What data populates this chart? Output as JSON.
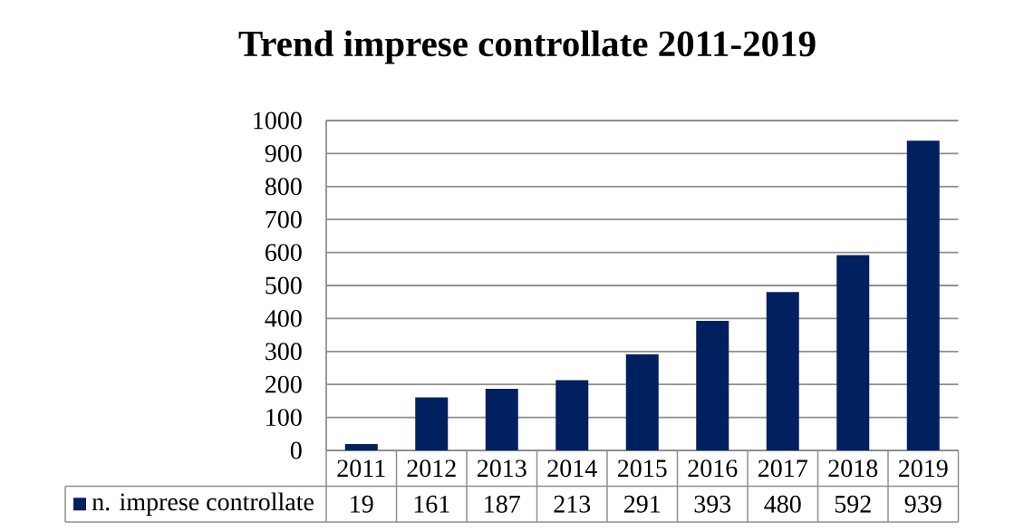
{
  "chart_data": {
    "type": "bar",
    "title": "Trend imprese controllate 2011-2019",
    "categories": [
      "2011",
      "2012",
      "2013",
      "2014",
      "2015",
      "2016",
      "2017",
      "2018",
      "2019"
    ],
    "series": [
      {
        "name": "n. imprese controllate",
        "color": "#002060",
        "values": [
          19,
          161,
          187,
          213,
          291,
          393,
          480,
          592,
          939
        ]
      }
    ],
    "ylim": [
      0,
      1000
    ],
    "yticks": [
      0,
      100,
      200,
      300,
      400,
      500,
      600,
      700,
      800,
      900,
      1000
    ],
    "grid": "y",
    "legend": "bottom left",
    "data_labels": true
  }
}
